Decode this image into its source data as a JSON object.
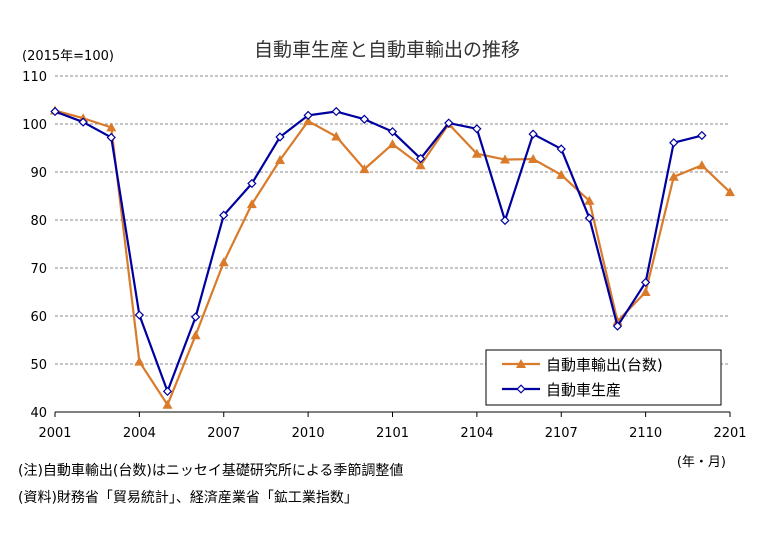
{
  "chart_data": {
    "type": "line",
    "title": "自動車生産と自動車輸出の推移",
    "ylabel": "(2015年=100)",
    "xlabel": "(年・月)",
    "ylim": [
      40,
      110
    ],
    "yticks": [
      40,
      50,
      60,
      70,
      80,
      90,
      100,
      110
    ],
    "x_tick_labels": [
      "2001",
      "2004",
      "2007",
      "2010",
      "2101",
      "2104",
      "2107",
      "2110",
      "2201"
    ],
    "grid": "horizontal dashed",
    "legend_position": "bottom-right",
    "x": [
      "2001",
      "2002",
      "2003",
      "2004",
      "2005",
      "2006",
      "2007",
      "2008",
      "2009",
      "2010",
      "2011",
      "2012",
      "2101",
      "2102",
      "2103",
      "2104",
      "2105",
      "2106",
      "2107",
      "2108",
      "2109",
      "2110",
      "2111",
      "2112",
      "2201"
    ],
    "series": [
      {
        "name": "自動車輸出(台数)",
        "color": "#D97B2B",
        "marker": "triangle",
        "values": [
          102.8,
          101.2,
          99.3,
          50.5,
          41.5,
          56.0,
          71.2,
          83.3,
          92.5,
          100.6,
          97.4,
          90.6,
          95.8,
          91.4,
          100.0,
          93.8,
          92.6,
          92.7,
          89.4,
          84.0,
          58.9,
          65.0,
          89.0,
          91.4,
          85.8
        ]
      },
      {
        "name": "自動車生産",
        "color": "#0000A0",
        "marker": "diamond-open",
        "values": [
          102.6,
          100.4,
          97.2,
          60.2,
          44.3,
          59.8,
          81.0,
          87.6,
          97.3,
          101.8,
          102.6,
          101.0,
          98.4,
          92.8,
          100.2,
          99.0,
          79.9,
          97.9,
          94.8,
          80.4,
          57.9,
          67.0,
          96.1,
          97.6,
          null
        ]
      }
    ]
  },
  "notes": {
    "note": "(注)自動車輸出(台数)はニッセイ基礎研究所による季節調整値",
    "source": "(資料)財務省「貿易統計」、経済産業省「鉱工業指数」"
  }
}
